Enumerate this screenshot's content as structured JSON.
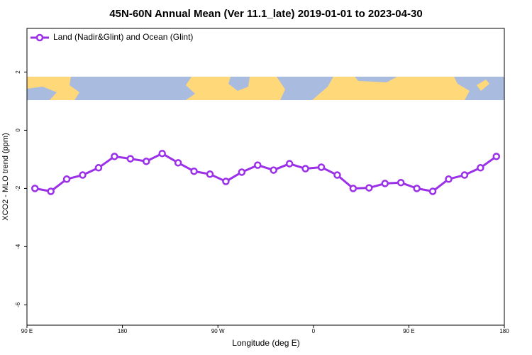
{
  "chart_data": {
    "type": "line",
    "title": "45N-60N Annual Mean (Ver 11.1_late)   2019-01-01 to 2023-04-30",
    "x_label": "Longitude (deg E)",
    "y_label": "XCO2 - MLO trend (ppm)",
    "x": [
      97.5,
      112.5,
      127.5,
      142.5,
      157.5,
      172.5,
      187.5,
      202.5,
      217.5,
      232.5,
      247.5,
      262.5,
      277.5,
      292.5,
      307.5,
      322.5,
      337.5,
      352.5,
      367.5,
      382.5,
      397.5,
      412.5,
      427.5,
      442.5,
      457.5,
      472.5,
      487.5,
      502.5,
      517.5,
      532.5
    ],
    "series": [
      {
        "name": "Land (Nadir&Glint) and Ocean (Glint)",
        "color": "#9b30e8",
        "values": [
          -2.0,
          -2.1,
          -1.68,
          -1.54,
          -1.29,
          -0.9,
          -0.98,
          -1.07,
          -0.8,
          -1.12,
          -1.41,
          -1.51,
          -1.76,
          -1.44,
          -1.2,
          -1.37,
          -1.15,
          -1.32,
          -1.27,
          -1.54,
          -2.0,
          -1.98,
          -1.83,
          -1.8,
          -2.0,
          -2.1,
          -1.68,
          -1.54,
          -1.29,
          -0.9
        ]
      }
    ],
    "xlim": [
      90,
      540
    ],
    "xticks": [
      {
        "value": 90,
        "label": "90 E"
      },
      {
        "value": 180,
        "label": "180"
      },
      {
        "value": 270,
        "label": "90 W"
      },
      {
        "value": 360,
        "label": "0"
      },
      {
        "value": 450,
        "label": "90 E"
      },
      {
        "value": 540,
        "label": "180"
      }
    ],
    "ylim": [
      -6.7,
      3.5
    ],
    "yticks": [
      -6,
      -4,
      -2,
      0,
      2
    ],
    "grid": false,
    "legend": "top-left"
  }
}
